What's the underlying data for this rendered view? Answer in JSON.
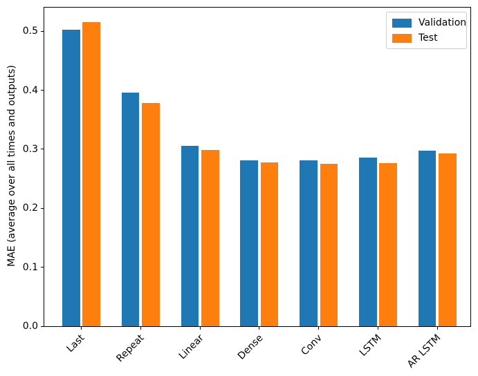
{
  "chart_data": {
    "type": "bar",
    "title": "",
    "xlabel": "",
    "ylabel": "MAE (average over all times and outputs)",
    "categories": [
      "Last",
      "Repeat",
      "Linear",
      "Dense",
      "Conv",
      "LSTM",
      "AR LSTM"
    ],
    "series": [
      {
        "name": "Validation",
        "color": "#1f77b4",
        "values": [
          0.502,
          0.396,
          0.306,
          0.281,
          0.281,
          0.286,
          0.298
        ]
      },
      {
        "name": "Test",
        "color": "#ff7f0e",
        "values": [
          0.516,
          0.378,
          0.299,
          0.278,
          0.275,
          0.277,
          0.293
        ]
      }
    ],
    "ylim": [
      0.0,
      0.54
    ],
    "yticks": [
      "0.0",
      "0.1",
      "0.2",
      "0.3",
      "0.4",
      "0.5"
    ],
    "xtick_rotation": 45,
    "grid": false,
    "legend": {
      "position": "upper right",
      "entries": [
        "Validation",
        "Test"
      ]
    },
    "colors": {
      "spine": "#000000",
      "background": "#ffffff",
      "legend_border": "#cccccc"
    }
  }
}
